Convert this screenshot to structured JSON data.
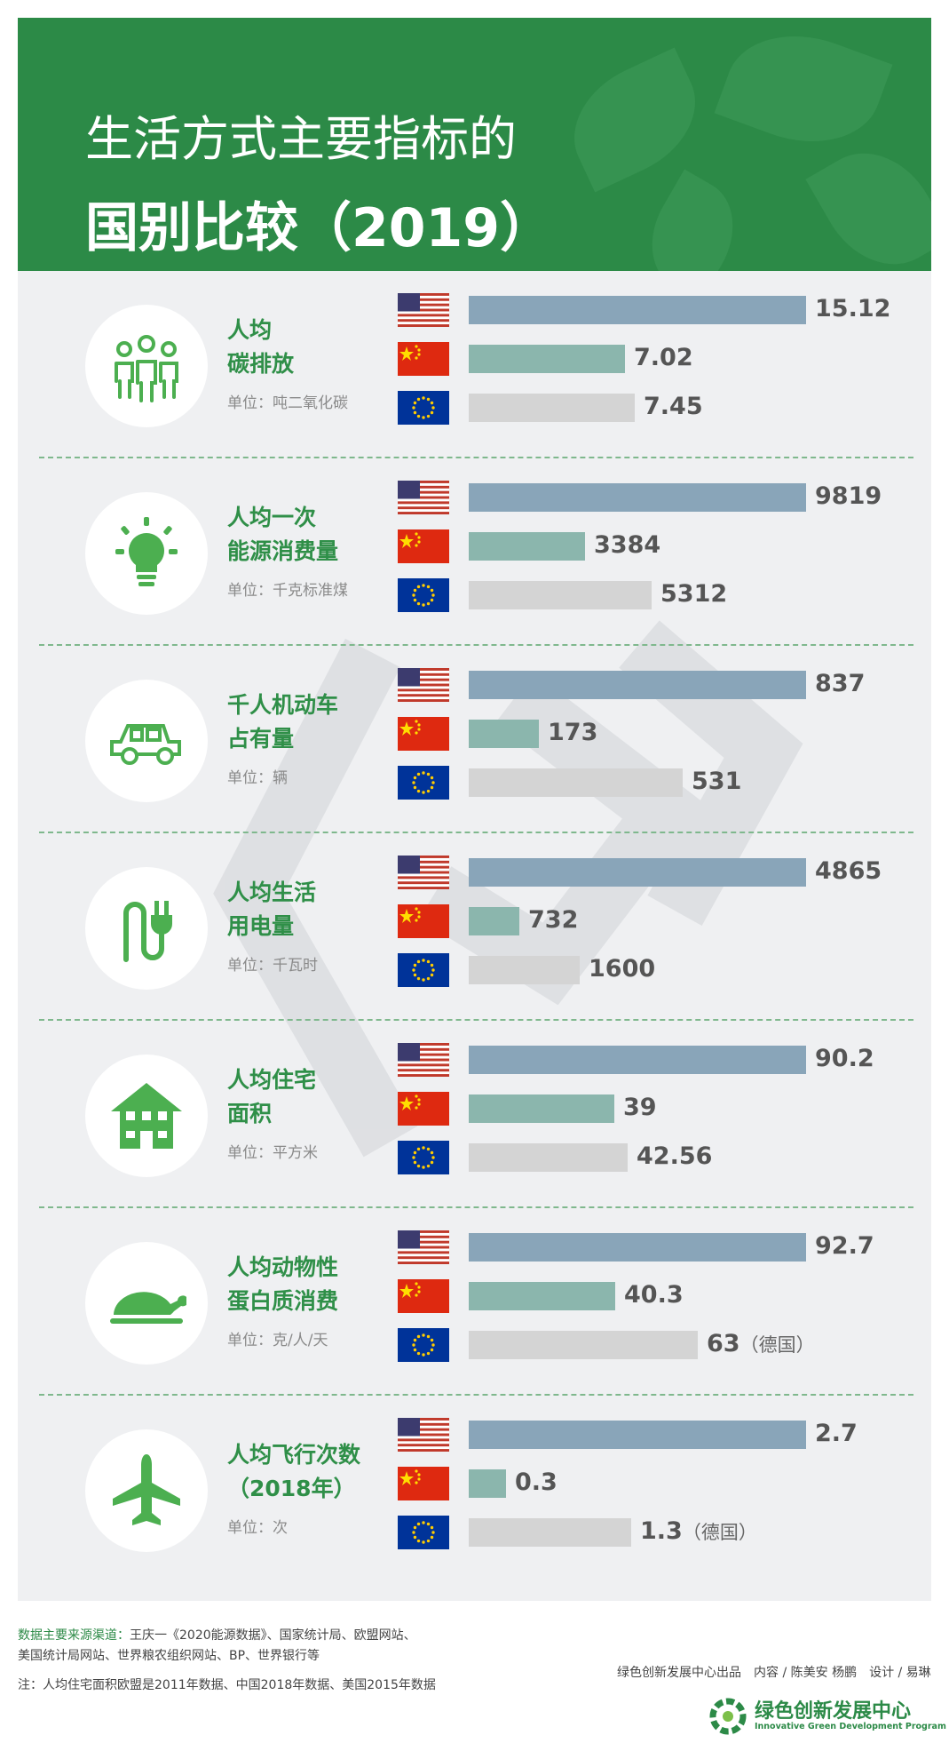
{
  "title": {
    "line1": "生活方式主要指标的",
    "line2": "国别比较（2019）"
  },
  "colors": {
    "header": "#2c8a47",
    "us_bar": "#89a5b9",
    "cn_bar": "#8bb6ad",
    "eu_bar": "#d4d4d4",
    "label": "#2f8f48"
  },
  "chart_data": {
    "type": "bar",
    "series_order": [
      "美国",
      "中国",
      "欧盟"
    ],
    "panels": [
      {
        "label": [
          "人均",
          "碳排放"
        ],
        "unit": "单位：吨二氧化碳",
        "icon": "people-icon",
        "values": [
          15.12,
          7.02,
          7.45
        ],
        "labels": [
          "15.12",
          "7.02",
          "7.45"
        ],
        "notes": [
          "",
          "",
          ""
        ]
      },
      {
        "label": [
          "人均一次",
          "能源消费量"
        ],
        "unit": "单位：千克标准煤",
        "icon": "light-bulb-icon",
        "values": [
          9819,
          3384,
          5312
        ],
        "labels": [
          "9819",
          "3384",
          "5312"
        ],
        "notes": [
          "",
          "",
          ""
        ]
      },
      {
        "label": [
          "千人机动车",
          "占有量"
        ],
        "unit": "单位：辆",
        "icon": "car-icon",
        "values": [
          837,
          173,
          531
        ],
        "labels": [
          "837",
          "173",
          "531"
        ],
        "notes": [
          "",
          "",
          ""
        ]
      },
      {
        "label": [
          "人均生活",
          "用电量"
        ],
        "unit": "单位：千瓦时",
        "icon": "plug-icon",
        "values": [
          4865,
          732,
          1600
        ],
        "labels": [
          "4865",
          "732",
          "1600"
        ],
        "notes": [
          "",
          "",
          ""
        ]
      },
      {
        "label": [
          "人均住宅",
          "面积"
        ],
        "unit": "单位：平方米",
        "icon": "house-icon",
        "values": [
          90.2,
          39,
          42.56
        ],
        "labels": [
          "90.2",
          "39",
          "42.56"
        ],
        "notes": [
          "",
          "",
          ""
        ]
      },
      {
        "label": [
          "人均动物性",
          "蛋白质消费"
        ],
        "unit": "单位：克/人/天",
        "icon": "roast-chicken-icon",
        "values": [
          92.7,
          40.3,
          63
        ],
        "labels": [
          "92.7",
          "40.3",
          "63"
        ],
        "notes": [
          "",
          "",
          "（德国）"
        ]
      },
      {
        "label": [
          "人均飞行次数",
          "（2018年）"
        ],
        "unit": "单位：次",
        "icon": "airplane-icon",
        "values": [
          2.7,
          0.3,
          1.3
        ],
        "labels": [
          "2.7",
          "0.3",
          "1.3"
        ],
        "notes": [
          "",
          "",
          "（德国）"
        ]
      }
    ]
  },
  "footer": {
    "source_label": "数据主要来源渠道：",
    "source_text": "王庆一《2020能源数据》、国家统计局、欧盟网站、",
    "source_text2": "美国统计局网站、世界粮农组织网站、BP、世界银行等",
    "note": "注：人均住宅面积欧盟是2011年数据、中国2018年数据、美国2015年数据",
    "credits": "绿色创新发展中心出品　内容 / 陈美安 杨鹏　设计 / 易琳",
    "logo_cn": "绿色创新发展中心",
    "logo_en": "Innovative Green Development Program"
  }
}
